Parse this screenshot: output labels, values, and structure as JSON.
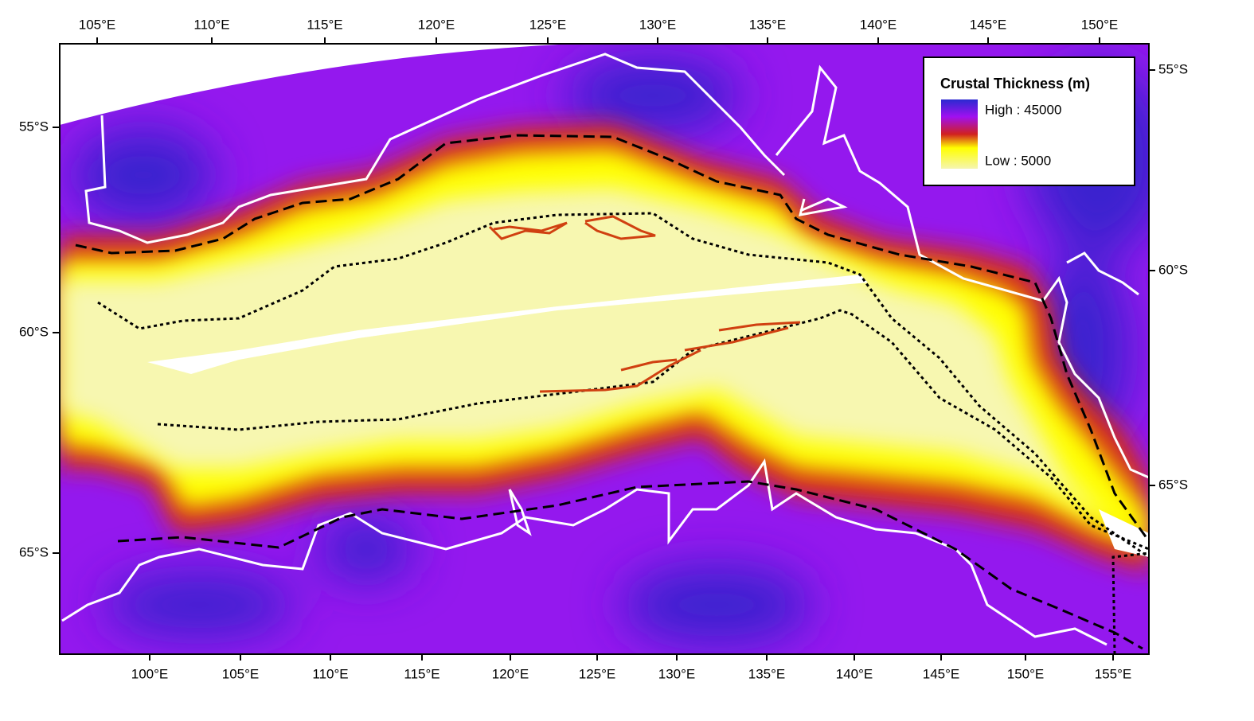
{
  "map": {
    "top_labels": [
      "105°E",
      "110°E",
      "115°E",
      "120°E",
      "125°E",
      "130°E",
      "135°E",
      "140°E",
      "145°E",
      "150°E"
    ],
    "bottom_labels": [
      "100°E",
      "105°E",
      "110°E",
      "115°E",
      "120°E",
      "125°E",
      "130°E",
      "135°E",
      "140°E",
      "145°E",
      "150°E",
      "155°E"
    ],
    "left_labels": [
      "55°S",
      "60°S",
      "65°S"
    ],
    "right_labels": [
      "55°S",
      "60°S",
      "65°S"
    ],
    "legend": {
      "title": "Crustal Thickness (m)",
      "high": "High : 45000",
      "low": "Low : 5000"
    }
  }
}
